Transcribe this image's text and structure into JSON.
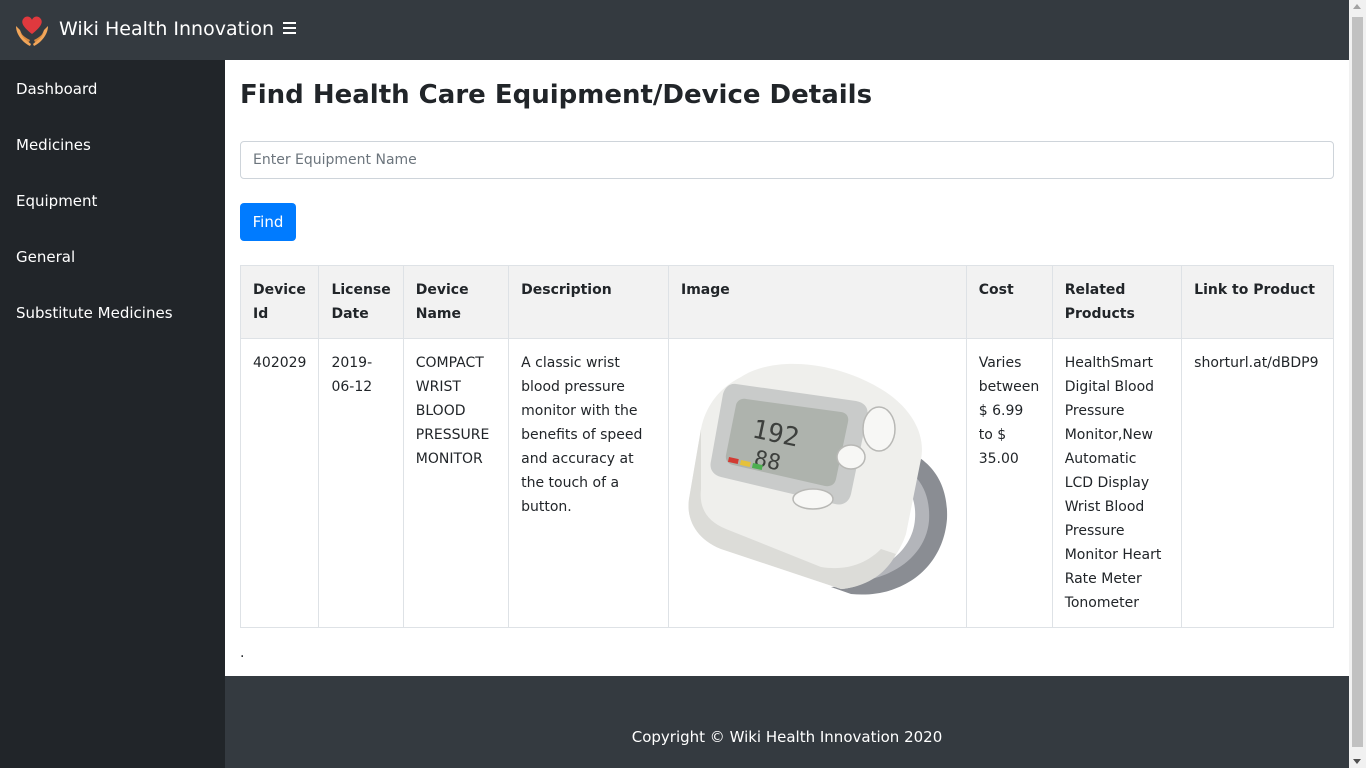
{
  "app": {
    "brand": "Wiki Health Innovation"
  },
  "sidebar": {
    "items": [
      {
        "label": "Dashboard"
      },
      {
        "label": "Medicines"
      },
      {
        "label": "Equipment"
      },
      {
        "label": "General"
      },
      {
        "label": "Substitute Medicines"
      }
    ]
  },
  "main": {
    "title": "Find Health Care Equipment/Device Details",
    "search": {
      "placeholder": "Enter Equipment Name",
      "value": ""
    },
    "find_label": "Find",
    "table": {
      "headers": [
        "Device Id",
        "License Date",
        "Device Name",
        "Description",
        "Image",
        "Cost",
        "Related Products",
        "Link to Product"
      ],
      "rows": [
        {
          "device_id": "402029",
          "license_date": "2019-06-12",
          "device_name": "COMPACT WRIST BLOOD PRESSURE MONITOR",
          "description": "A classic wrist blood pressure monitor with the benefits of speed and accuracy at the touch of a button.",
          "image_icon": "wrist-blood-pressure-monitor-image",
          "cost": "Varies between $ 6.99 to $ 35.00",
          "related_products": "HealthSmart Digital Blood Pressure Monitor,New Automatic LCD Display Wrist Blood Pressure Monitor Heart Rate Meter Tonometer",
          "link": "shorturl.at/dBDP9"
        }
      ]
    },
    "trailing_text": "."
  },
  "footer": {
    "copyright": "Copyright © Wiki Health Innovation 2020"
  },
  "colors": {
    "navbar": "#343a40",
    "sidebar": "#212529",
    "primary": "#007bff",
    "logo_heart": "#e0393e",
    "logo_hands": "#f2a65a"
  }
}
